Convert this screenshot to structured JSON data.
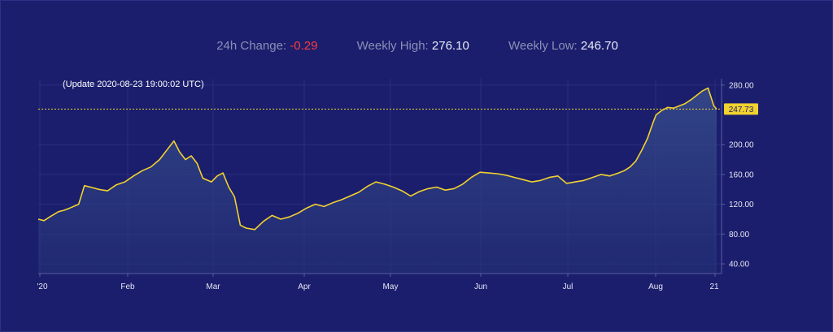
{
  "stats": {
    "change_label": "24h Change:",
    "change_value": "-0.29",
    "high_label": "Weekly High:",
    "high_value": "276.10",
    "low_label": "Weekly Low:",
    "low_value": "246.70"
  },
  "colors": {
    "background": "#1b1e6d",
    "line": "#f2d22e",
    "negative": "#ff3b3b",
    "area_fill": "#2c3f82"
  },
  "chart_data": {
    "type": "area",
    "annotation": "(Update 2020-08-23 19:00:02 UTC)",
    "x_ticks": [
      "'20",
      "Feb",
      "Mar",
      "Apr",
      "May",
      "Jun",
      "Jul",
      "Aug",
      "21"
    ],
    "y_ticks": [
      "40.00",
      "80.00",
      "120.00",
      "160.00",
      "200.00",
      "280.00"
    ],
    "ylim": [
      27,
      295
    ],
    "x_range": [
      "2020-01-01",
      "2020-08-23"
    ],
    "last_value": "247.73",
    "last_value_line": 247.73,
    "grid": true,
    "series": [
      {
        "x": [
          "2020-01-01",
          "2020-01-03",
          "2020-01-05",
          "2020-01-08",
          "2020-01-10",
          "2020-01-12",
          "2020-01-15",
          "2020-01-17",
          "2020-01-20",
          "2020-01-22",
          "2020-01-25",
          "2020-01-28",
          "2020-01-31",
          "2020-02-03",
          "2020-02-06",
          "2020-02-09",
          "2020-02-12",
          "2020-02-15",
          "2020-02-17",
          "2020-02-19",
          "2020-02-21",
          "2020-02-23",
          "2020-02-25",
          "2020-02-27",
          "2020-03-01",
          "2020-03-03",
          "2020-03-05",
          "2020-03-07",
          "2020-03-09",
          "2020-03-11",
          "2020-03-13",
          "2020-03-16",
          "2020-03-19",
          "2020-03-22",
          "2020-03-25",
          "2020-03-28",
          "2020-03-31",
          "2020-04-03",
          "2020-04-06",
          "2020-04-09",
          "2020-04-12",
          "2020-04-15",
          "2020-04-18",
          "2020-04-21",
          "2020-04-24",
          "2020-04-27",
          "2020-04-30",
          "2020-05-03",
          "2020-05-06",
          "2020-05-09",
          "2020-05-12",
          "2020-05-15",
          "2020-05-18",
          "2020-05-21",
          "2020-05-24",
          "2020-05-27",
          "2020-05-30",
          "2020-06-02",
          "2020-06-05",
          "2020-06-08",
          "2020-06-11",
          "2020-06-14",
          "2020-06-17",
          "2020-06-20",
          "2020-06-23",
          "2020-06-26",
          "2020-06-29",
          "2020-07-02",
          "2020-07-05",
          "2020-07-08",
          "2020-07-11",
          "2020-07-14",
          "2020-07-17",
          "2020-07-20",
          "2020-07-22",
          "2020-07-24",
          "2020-07-26",
          "2020-07-28",
          "2020-07-30",
          "2020-08-01",
          "2020-08-02",
          "2020-08-04",
          "2020-08-06",
          "2020-08-08",
          "2020-08-10",
          "2020-08-12",
          "2020-08-14",
          "2020-08-16",
          "2020-08-18",
          "2020-08-20",
          "2020-08-22",
          "2020-08-23"
        ],
        "y": [
          100,
          98,
          103,
          110,
          112,
          115,
          120,
          145,
          142,
          140,
          138,
          146,
          150,
          158,
          165,
          170,
          180,
          195,
          205,
          190,
          180,
          185,
          175,
          155,
          150,
          158,
          162,
          143,
          130,
          92,
          88,
          86,
          97,
          105,
          100,
          103,
          108,
          115,
          120,
          117,
          122,
          126,
          131,
          136,
          144,
          150,
          147,
          143,
          138,
          131,
          137,
          141,
          143,
          139,
          141,
          147,
          156,
          163,
          162,
          161,
          159,
          156,
          153,
          150,
          152,
          156,
          158,
          148,
          150,
          152,
          156,
          160,
          158,
          162,
          165,
          170,
          178,
          192,
          208,
          230,
          240,
          246,
          250,
          249,
          252,
          255,
          260,
          266,
          272,
          276,
          252,
          247.73
        ]
      }
    ]
  }
}
